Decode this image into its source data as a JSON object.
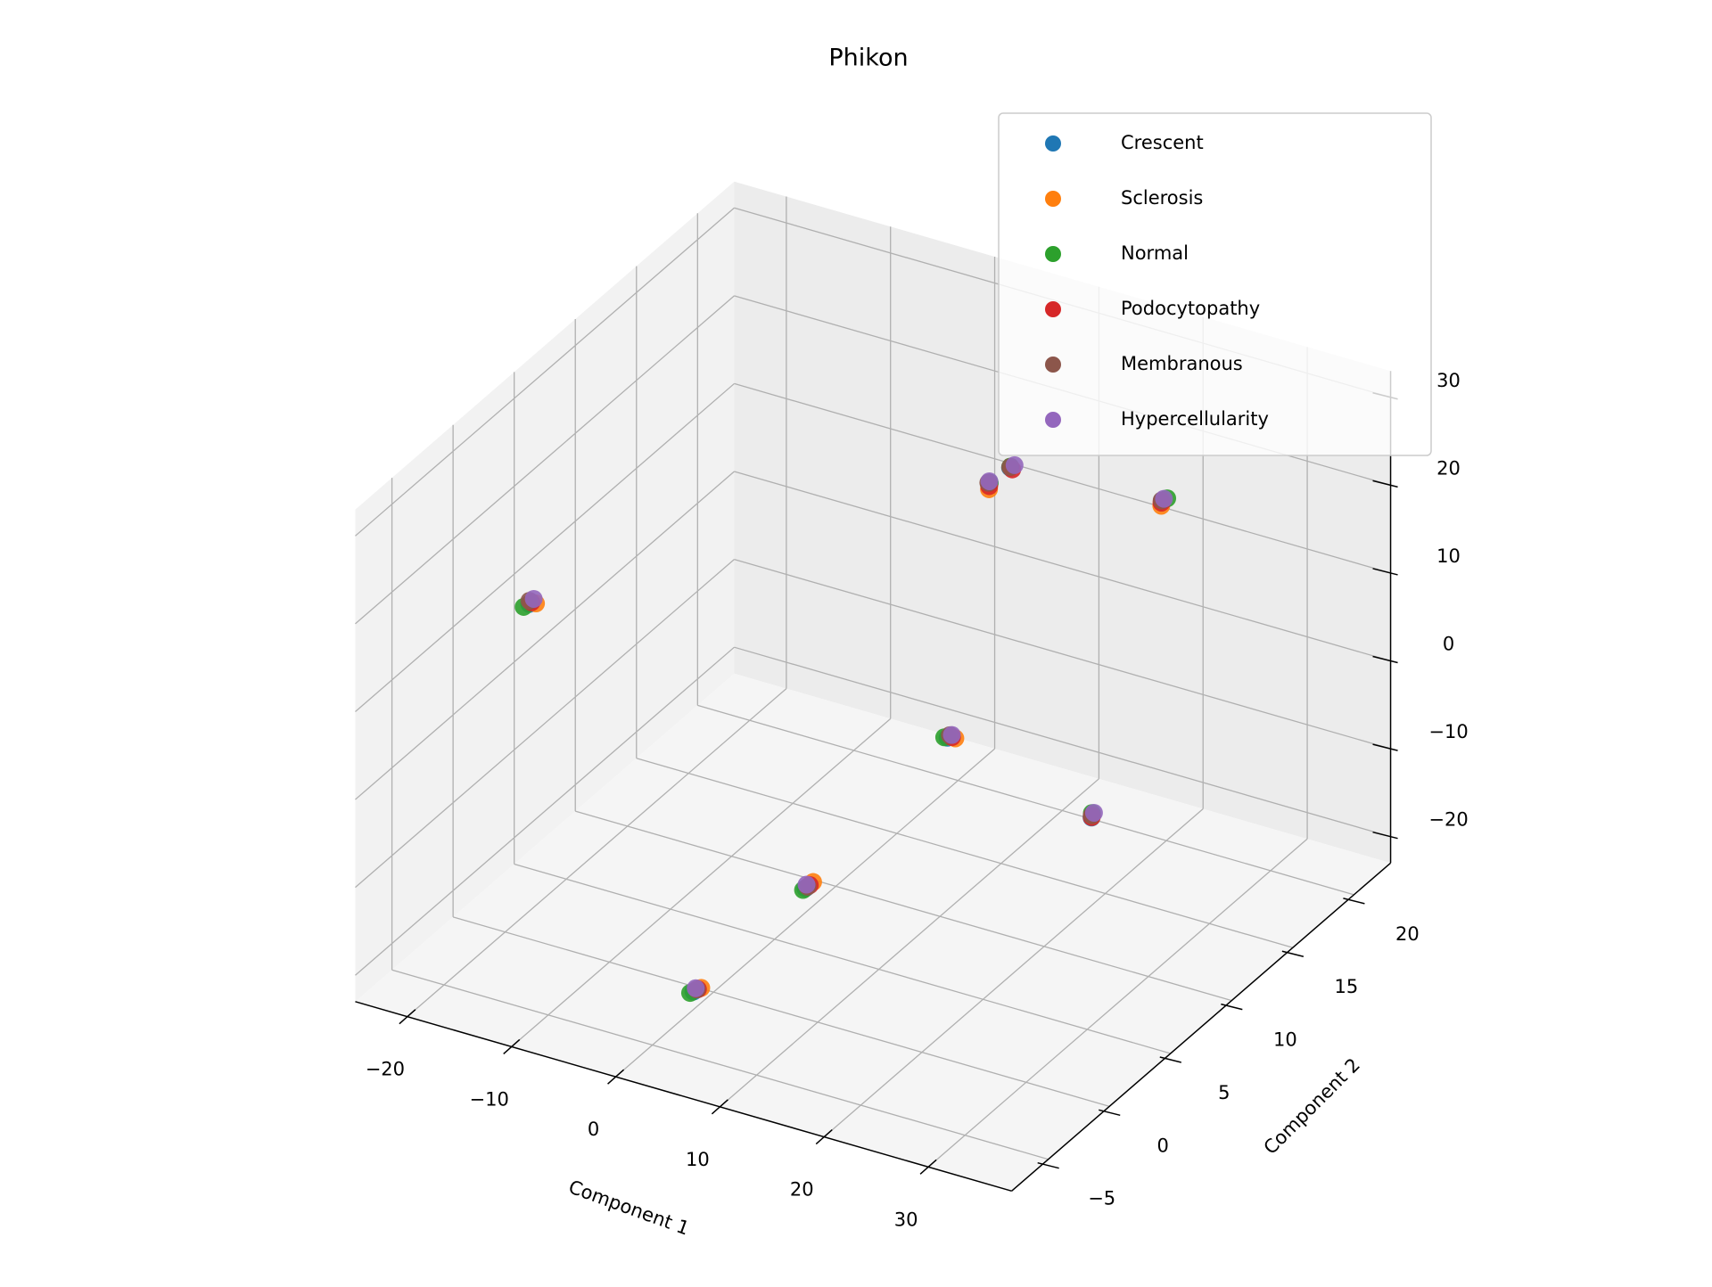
{
  "chart_data": {
    "type": "scatter3d",
    "title": "Phikon",
    "xlabel": "Component 1",
    "ylabel": "Component 2",
    "xlim": [
      -25,
      38
    ],
    "ylim": [
      -8,
      23
    ],
    "zlim": [
      -23,
      33
    ],
    "xticks": [
      {
        "value": -20,
        "label": "−20"
      },
      {
        "value": -10,
        "label": "−10"
      },
      0,
      10,
      20,
      30
    ],
    "yticks": [
      {
        "value": -5,
        "label": "−5"
      },
      0,
      5,
      10,
      15,
      20
    ],
    "zticks": [
      {
        "value": -20,
        "label": "−20"
      },
      {
        "value": -10,
        "label": "−10"
      },
      0,
      10,
      20,
      30
    ],
    "grid": true,
    "legend": "upper right",
    "series": [
      {
        "name": "Crescent",
        "color": "#1f77b4",
        "x": [
          -19.1,
          10.3,
          12.5,
          23.2,
          6.5,
          27.6,
          7.4,
          6.4
        ],
        "y": [
          1.2,
          13.8,
          13.6,
          16.9,
          13.6,
          7.4,
          1.2,
          -7.1
        ],
        "z": [
          13.2,
          21.9,
          24.6,
          20.5,
          -8.2,
          -2.6,
          -10.1,
          -12.2
        ]
      },
      {
        "name": "Sclerosis",
        "color": "#ff7f0e",
        "x": [
          -18.8,
          10.6,
          12.2,
          23.5,
          6.9,
          27.3,
          7.8,
          6.8
        ],
        "y": [
          1.5,
          13.5,
          13.9,
          16.6,
          13.9,
          7.7,
          1.5,
          -6.8
        ],
        "z": [
          13.0,
          21.6,
          24.2,
          20.4,
          -8.5,
          -2.9,
          -9.6,
          -12.0
        ]
      },
      {
        "name": "Normal",
        "color": "#2ca02c",
        "x": [
          -19.4,
          10.2,
          12.3,
          23.6,
          6.3,
          27.4,
          7.3,
          6.2
        ],
        "y": [
          1.0,
          13.9,
          13.8,
          17.0,
          13.5,
          7.6,
          1.1,
          -7.2
        ],
        "z": [
          13.0,
          21.7,
          24.4,
          20.8,
          -8.1,
          -2.4,
          -10.2,
          -12.3
        ]
      },
      {
        "name": "Podocytopathy",
        "color": "#d62728",
        "x": [
          -19.0,
          10.5,
          12.6,
          23.4,
          6.7,
          27.5,
          7.6,
          6.6
        ],
        "y": [
          1.3,
          13.6,
          13.7,
          16.7,
          13.8,
          7.5,
          1.4,
          -6.9
        ],
        "z": [
          13.3,
          21.8,
          24.3,
          20.6,
          -8.3,
          -2.7,
          -9.9,
          -12.1
        ]
      },
      {
        "name": "Membranous",
        "color": "#8c564b",
        "x": [
          -19.2,
          10.3,
          12.4,
          23.3,
          6.6,
          27.5,
          7.5,
          6.6
        ],
        "y": [
          1.3,
          13.7,
          13.7,
          16.8,
          13.7,
          7.5,
          1.3,
          -7.0
        ],
        "z": [
          13.4,
          22.0,
          24.5,
          20.7,
          -8.0,
          -2.5,
          -10.0,
          -12.0
        ]
      },
      {
        "name": "Hypercellularity",
        "color": "#9467bd",
        "x": [
          -18.9,
          10.4,
          12.7,
          23.4,
          6.8,
          27.6,
          7.4,
          6.5
        ],
        "y": [
          1.4,
          13.7,
          13.8,
          16.9,
          13.7,
          7.6,
          1.3,
          -7.0
        ],
        "z": [
          13.6,
          22.2,
          24.7,
          20.8,
          -7.9,
          -2.3,
          -9.8,
          -11.9
        ]
      }
    ]
  }
}
